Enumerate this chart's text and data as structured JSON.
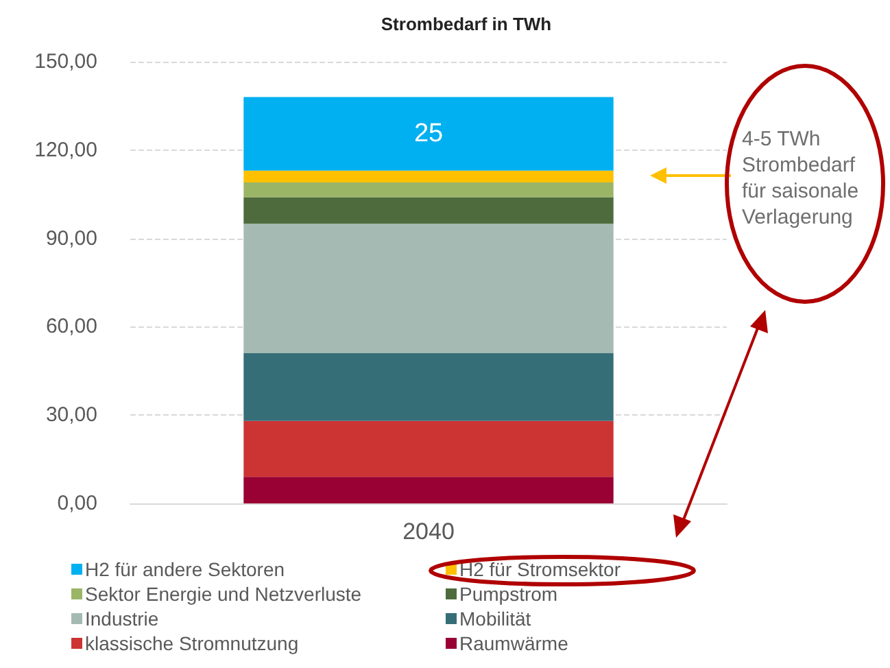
{
  "chart_data": {
    "type": "bar",
    "stacked": true,
    "title": "Strombedarf in TWh",
    "categories": [
      "2040"
    ],
    "ylim": [
      0,
      150
    ],
    "yticks": [
      {
        "value": 0,
        "label": "0,00"
      },
      {
        "value": 30,
        "label": "30,00"
      },
      {
        "value": 60,
        "label": "60,00"
      },
      {
        "value": 90,
        "label": "90,00"
      },
      {
        "value": 120,
        "label": "120,00"
      },
      {
        "value": 150,
        "label": "150,00"
      }
    ],
    "grid": "y",
    "legend": "bottom",
    "series": [
      {
        "name": "Raumwärme",
        "color": "#990033",
        "values": [
          9
        ]
      },
      {
        "name": "klassische Stromnutzung",
        "color": "#cc3333",
        "values": [
          19
        ]
      },
      {
        "name": "Mobilität",
        "color": "#366e78",
        "values": [
          23
        ]
      },
      {
        "name": "Industrie",
        "color": "#a5bab3",
        "values": [
          44
        ]
      },
      {
        "name": "Pumpstrom",
        "color": "#4e6b3d",
        "values": [
          9
        ]
      },
      {
        "name": "Sektor Energie und Netzverluste",
        "color": "#9bb567",
        "values": [
          5
        ]
      },
      {
        "name": "H2 für Stromsektor",
        "color": "#ffc000",
        "values": [
          4
        ]
      },
      {
        "name": "H2 für andere Sektoren",
        "color": "#00b0f0",
        "values": [
          25
        ],
        "value_labels": [
          "25"
        ]
      }
    ],
    "annotations": [
      "4-5 TWh Strombedarf für saisonale Verlagerung"
    ]
  }
}
